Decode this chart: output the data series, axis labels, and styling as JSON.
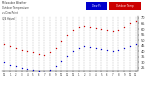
{
  "title_line1": "Milwaukee Weather",
  "title_line2": "Outdoor Temperature",
  "title_line3": "vs Dew Point",
  "title_line4": "(24 Hours)",
  "temp_color": "#cc0000",
  "dewpoint_color": "#0000cc",
  "background_color": "#ffffff",
  "grid_color": "#999999",
  "ylim": [
    22,
    72
  ],
  "ytick_values": [
    25,
    30,
    35,
    40,
    45,
    50,
    55,
    60,
    65,
    70
  ],
  "ytick_labels": [
    "25",
    "30",
    "35",
    "40",
    "45",
    "50",
    "55",
    "60",
    "65",
    "70"
  ],
  "hours": [
    0,
    1,
    2,
    3,
    4,
    5,
    6,
    7,
    8,
    9,
    10,
    11,
    12,
    13,
    14,
    15,
    16,
    17,
    18,
    19,
    20,
    21,
    22,
    23
  ],
  "temp_values": [
    47,
    45,
    43,
    41,
    40,
    39,
    38,
    37,
    39,
    43,
    49,
    55,
    59,
    62,
    63,
    62,
    61,
    60,
    59,
    58,
    59,
    62,
    65,
    67
  ],
  "dewpoint_values": [
    30,
    28,
    27,
    25,
    24,
    23,
    22,
    21,
    23,
    27,
    31,
    36,
    40,
    43,
    45,
    44,
    43,
    42,
    41,
    40,
    41,
    43,
    45,
    47
  ],
  "xlabel_labels": [
    "12",
    "1",
    "2",
    "3",
    "4",
    "5",
    "6",
    "7",
    "8",
    "9",
    "10",
    "11",
    "12",
    "1",
    "2",
    "3",
    "4",
    "5",
    "6",
    "7",
    "8",
    "9",
    "10",
    "11"
  ],
  "legend_dewpt_label": "Dew Pt",
  "legend_temp_label": "Outdoor Temp"
}
